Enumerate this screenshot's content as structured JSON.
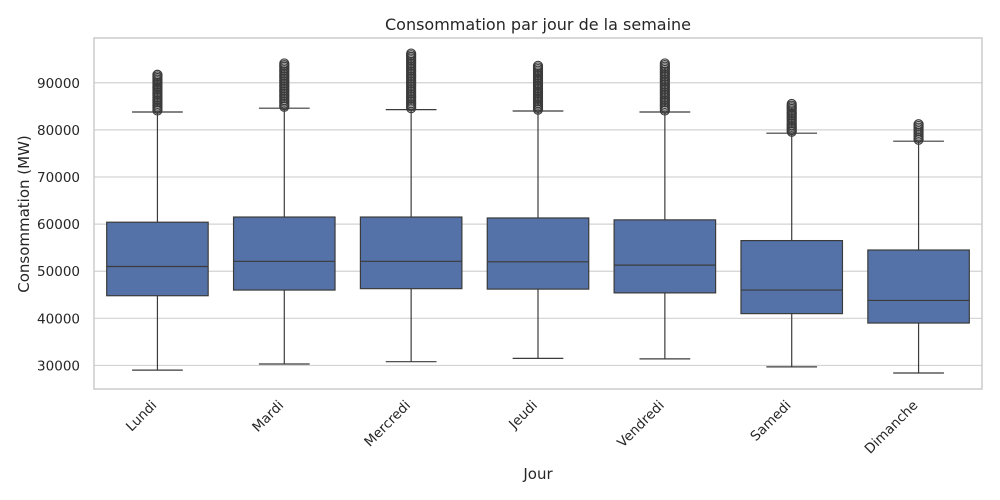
{
  "chart_data": {
    "type": "box",
    "title": "Consommation par jour de la semaine",
    "xlabel": "Jour",
    "ylabel": "Consommation (MW)",
    "ylim": [
      25000,
      99500
    ],
    "yticks": [
      30000,
      40000,
      50000,
      60000,
      70000,
      80000,
      90000
    ],
    "grid": true,
    "box_color": "#5572a8",
    "line_color": "#3b3b3b",
    "categories": [
      "Lundi",
      "Mardi",
      "Mercredi",
      "Jeudi",
      "Vendredi",
      "Samedi",
      "Dimanche"
    ],
    "boxes": [
      {
        "category": "Lundi",
        "whisker_low": 29000,
        "q1": 44800,
        "median": 51000,
        "q3": 60400,
        "whisker_high": 83800,
        "outlier_max": 91700
      },
      {
        "category": "Mardi",
        "whisker_low": 30300,
        "q1": 46000,
        "median": 52100,
        "q3": 61500,
        "whisker_high": 84600,
        "outlier_max": 94100
      },
      {
        "category": "Mercredi",
        "whisker_low": 30800,
        "q1": 46300,
        "median": 52100,
        "q3": 61500,
        "whisker_high": 84300,
        "outlier_max": 96200
      },
      {
        "category": "Jeudi",
        "whisker_low": 31500,
        "q1": 46200,
        "median": 52000,
        "q3": 61300,
        "whisker_high": 84000,
        "outlier_max": 93600
      },
      {
        "category": "Vendredi",
        "whisker_low": 31400,
        "q1": 45400,
        "median": 51300,
        "q3": 60900,
        "whisker_high": 83800,
        "outlier_max": 94100
      },
      {
        "category": "Samedi",
        "whisker_low": 29700,
        "q1": 41000,
        "median": 46000,
        "q3": 56500,
        "whisker_high": 79300,
        "outlier_max": 85500
      },
      {
        "category": "Dimanche",
        "whisker_low": 28400,
        "q1": 39000,
        "median": 43800,
        "q3": 54500,
        "whisker_high": 77600,
        "outlier_max": 81200
      }
    ]
  }
}
